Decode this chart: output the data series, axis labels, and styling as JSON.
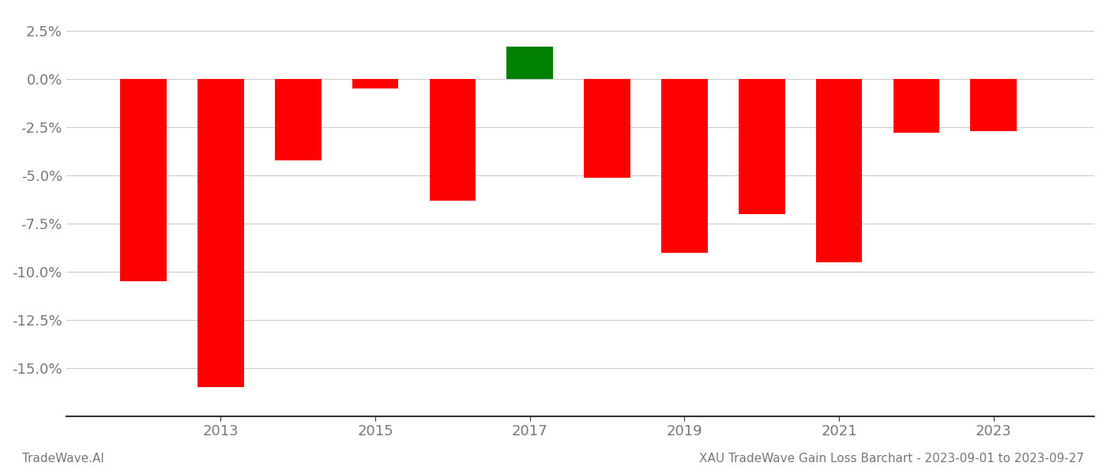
{
  "years": [
    2012,
    2013,
    2014,
    2015,
    2016,
    2017,
    2018,
    2019,
    2020,
    2021,
    2022,
    2023
  ],
  "values": [
    -10.5,
    -16.0,
    -4.2,
    -0.5,
    -6.3,
    1.7,
    -5.1,
    -9.0,
    -7.0,
    -9.5,
    -2.8,
    -2.7
  ],
  "colors": [
    "#ff0000",
    "#ff0000",
    "#ff0000",
    "#ff0000",
    "#ff0000",
    "#008000",
    "#ff0000",
    "#ff0000",
    "#ff0000",
    "#ff0000",
    "#ff0000",
    "#ff0000"
  ],
  "ylim": [
    -17.5,
    3.5
  ],
  "yticks": [
    2.5,
    0.0,
    -2.5,
    -5.0,
    -7.5,
    -10.0,
    -12.5,
    -15.0
  ],
  "xticks": [
    2013,
    2015,
    2017,
    2019,
    2021,
    2023
  ],
  "bar_width": 0.6,
  "title": "",
  "footer_left": "TradeWave.AI",
  "footer_right": "XAU TradeWave Gain Loss Barchart - 2023-09-01 to 2023-09-27",
  "bg_color": "#ffffff",
  "grid_color": "#cccccc",
  "axis_color": "#333333",
  "tick_label_color": "#777777",
  "footer_color": "#777777",
  "tick_fontsize": 13,
  "footer_fontsize": 11
}
